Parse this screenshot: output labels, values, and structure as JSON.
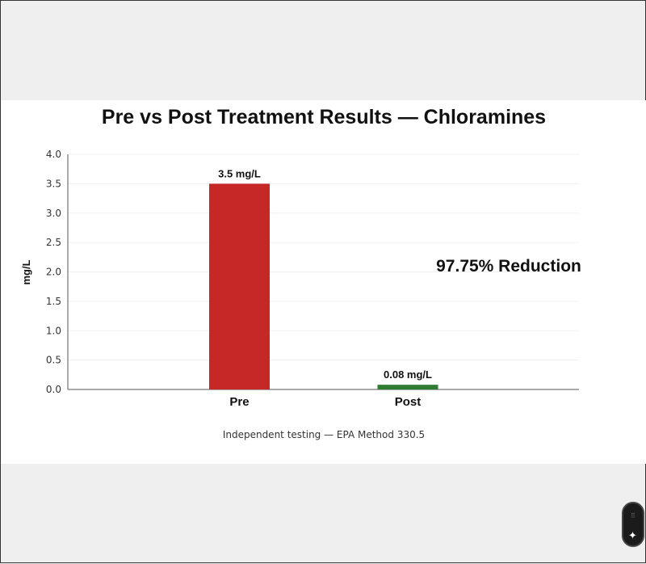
{
  "chart_data": {
    "type": "bar",
    "title": "Pre vs Post Treatment Results — Chloramines",
    "categories": [
      "Pre",
      "Post"
    ],
    "values": [
      3.5,
      0.08
    ],
    "data_labels": [
      "3.5 mg/L",
      "0.08 mg/L"
    ],
    "colors": [
      "#c62828",
      "#2e7d32"
    ],
    "xlabel": "",
    "ylabel": "mg/L",
    "ylim": [
      0,
      4.0
    ],
    "yticks": [
      "0.0",
      "0.5",
      "1.0",
      "1.5",
      "2.0",
      "2.5",
      "3.0",
      "3.5",
      "4.0"
    ],
    "grid": true,
    "annotation": "97.75% Reduction",
    "caption": "Independent testing — EPA Method 330.5"
  }
}
